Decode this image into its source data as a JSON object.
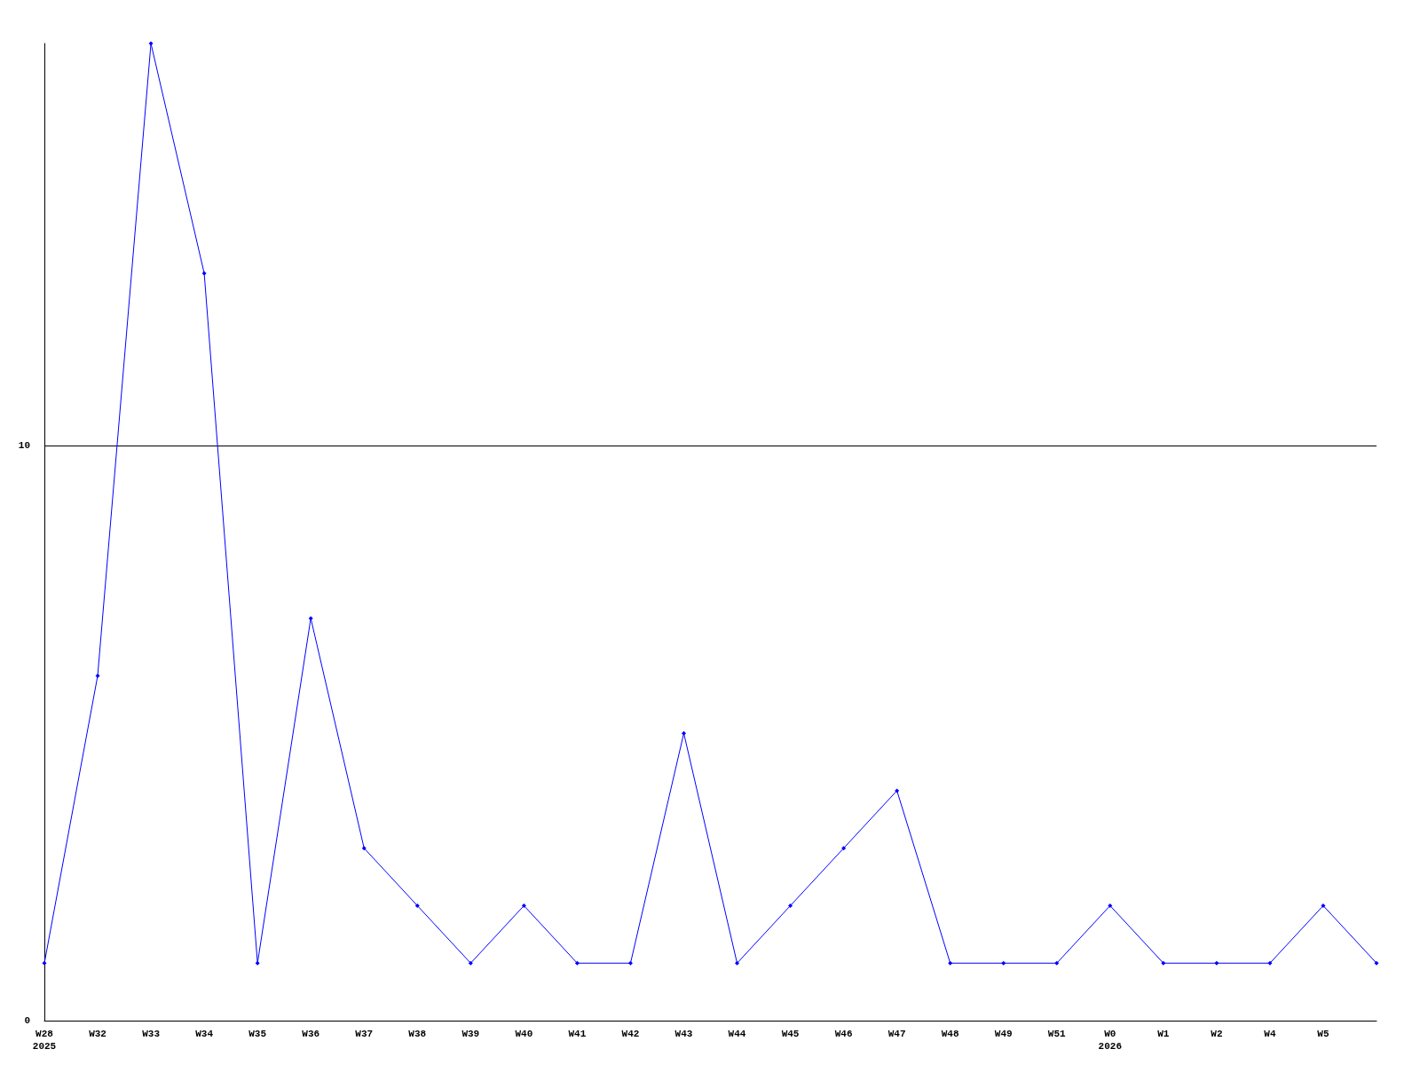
{
  "chart_data": {
    "type": "line",
    "categories": [
      "W28\n2025",
      "W32",
      "W33",
      "W34",
      "W35",
      "W36",
      "W37",
      "W38",
      "W39",
      "W40",
      "W41",
      "W42",
      "W43",
      "W44",
      "W45",
      "W46",
      "W47",
      "W48",
      "W49",
      "W51",
      "W0\n2026",
      "W1",
      "W2",
      "W4",
      "W5",
      null
    ],
    "series": [
      {
        "color": "#0000ff",
        "values": [
          1,
          6,
          17,
          13,
          1,
          7,
          3,
          2,
          1,
          2,
          1,
          1,
          5,
          1,
          2,
          3,
          4,
          1,
          1,
          1,
          2,
          1,
          1,
          1,
          2,
          1
        ]
      }
    ],
    "ylim": [
      0,
      17
    ],
    "yticks": [
      0,
      10
    ],
    "grid": "y",
    "marker": "diamond",
    "line_style": "solid"
  }
}
